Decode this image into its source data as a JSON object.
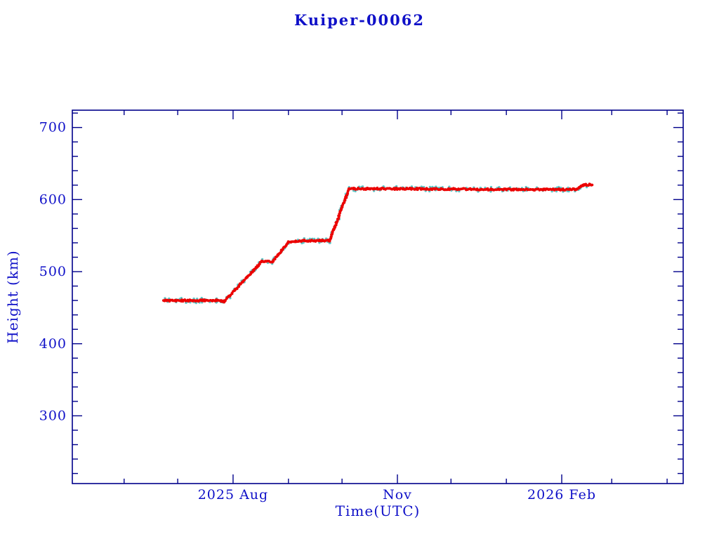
{
  "colors": {
    "text_blue": "#0f10c8",
    "axis_navy": "#00008b",
    "series_red": "#eb0000",
    "underlay_teal": "#5fc6c6",
    "background": "#ffffff"
  },
  "chart_data": {
    "type": "scatter",
    "title": "Kuiper-00062",
    "xlabel": "Time(UTC)",
    "ylabel": "Height (km)",
    "xlim": [
      "2025-05-03",
      "2026-04-10"
    ],
    "ylim": [
      206,
      724
    ],
    "grid": false,
    "legend": "none",
    "yticks": {
      "major_values": [
        300,
        400,
        500,
        600,
        700
      ],
      "major_labels": [
        "300",
        "400",
        "500",
        "600",
        "700"
      ],
      "minor_step": 20
    },
    "xticks": {
      "major": [
        {
          "date": "2025-08-01",
          "label": "2025 Aug"
        },
        {
          "date": "2025-11-01",
          "label": "Nov"
        },
        {
          "date": "2026-02-01",
          "label": "2026 Feb"
        }
      ],
      "minor": "month-starts"
    },
    "series": [
      {
        "name": "height_km",
        "color": "#eb0000",
        "marker": "dot",
        "points": [
          [
            "2025-06-23",
            460
          ],
          [
            "2025-07-23",
            460
          ],
          [
            "2025-07-27",
            458.5
          ],
          [
            "2025-08-17",
            514
          ],
          [
            "2025-08-23",
            514
          ],
          [
            "2025-09-01",
            541
          ],
          [
            "2025-09-10",
            543
          ],
          [
            "2025-09-24",
            543
          ],
          [
            "2025-10-05",
            615
          ],
          [
            "2025-11-01",
            615
          ],
          [
            "2026-01-01",
            614
          ],
          [
            "2026-02-09",
            614
          ],
          [
            "2026-02-11",
            617
          ],
          [
            "2026-02-13",
            620
          ],
          [
            "2026-02-18",
            621
          ]
        ]
      }
    ],
    "underlay_series_color": "#5fc6c6"
  }
}
